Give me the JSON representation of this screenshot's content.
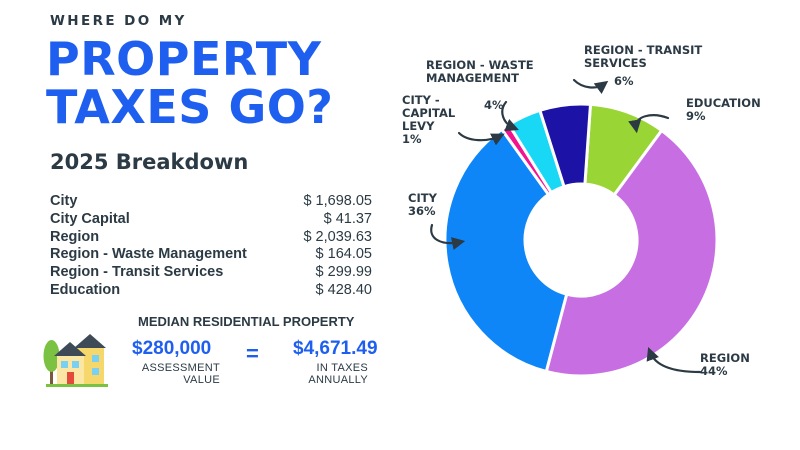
{
  "header": {
    "kicker": "WHERE DO MY",
    "title_line1": "PROPERTY",
    "title_line2": "TAXES GO?",
    "subtitle": "2025 Breakdown"
  },
  "breakdown": [
    {
      "label": "City",
      "amount": "$ 1,698.05"
    },
    {
      "label": "City Capital",
      "amount": "$ 41.37"
    },
    {
      "label": "Region",
      "amount": "$ 2,039.63"
    },
    {
      "label": "Region - Waste Management",
      "amount": "$ 164.05"
    },
    {
      "label": "Region - Transit Services",
      "amount": "$ 299.99"
    },
    {
      "label": "Education",
      "amount": "$ 428.40"
    }
  ],
  "median": {
    "title": "MEDIAN RESIDENTIAL PROPERTY",
    "assessment_value": "$280,000",
    "assessment_caption_1": "ASSESSMENT",
    "assessment_caption_2": "VALUE",
    "equals": "=",
    "tax_value": "$4,671.49",
    "tax_caption_1": "IN TAXES",
    "tax_caption_2": "ANNUALLY"
  },
  "chart_data": {
    "type": "pie",
    "donut": true,
    "slices": [
      {
        "label_lines": [
          "EDUCATION",
          "9%"
        ],
        "value": 9,
        "color": "#99d534"
      },
      {
        "label_lines": [
          "REGION",
          "44%"
        ],
        "value": 44,
        "color": "#c86ee3"
      },
      {
        "label_lines": [
          "CITY",
          "36%"
        ],
        "value": 36,
        "color": "#0f86f7"
      },
      {
        "label_lines": [
          "CITY -",
          "CAPITAL",
          "LEVY",
          "1%"
        ],
        "value": 1,
        "color": "#f2148f"
      },
      {
        "label_lines": [
          "REGION - WASTE",
          "MANAGEMENT",
          "4%"
        ],
        "value": 4,
        "color": "#19d8f5"
      },
      {
        "label_lines": [
          "REGION - TRANSIT",
          "SERVICES",
          "6%"
        ],
        "value": 6,
        "color": "#1d12a6"
      }
    ],
    "colors": {
      "accent": "#1f5ff0",
      "text": "#2b3a44"
    }
  }
}
